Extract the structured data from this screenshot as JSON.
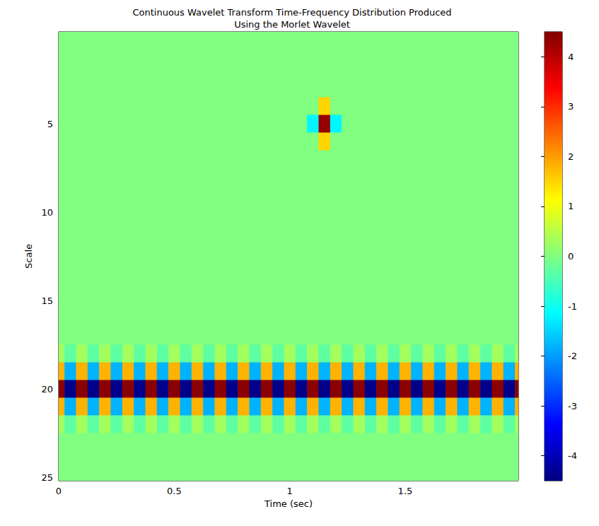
{
  "chart_data": {
    "type": "heatmap",
    "title": "Continuous Wavelet Transform Time-Frequency Distribution Produced\nUsing the Morlet Wavelet",
    "x_label": "Time (sec)",
    "y_label": "Scale",
    "xlim": [
      0,
      1.99
    ],
    "xticks": [
      0,
      0.5,
      1,
      1.5
    ],
    "ylim": [
      -0.2,
      25.2
    ],
    "yticks": [
      5,
      10,
      15,
      20,
      25
    ],
    "grid": false,
    "x": [
      0,
      0.05,
      0.1,
      0.15,
      0.2,
      0.25,
      0.3,
      0.35,
      0.4,
      0.45,
      0.5,
      0.55,
      0.6,
      0.65,
      0.7,
      0.75,
      0.8,
      0.85,
      0.9,
      0.95,
      1,
      1.05,
      1.1,
      1.15,
      1.2,
      1.25,
      1.3,
      1.35,
      1.4,
      1.45,
      1.5,
      1.55,
      1.6,
      1.65,
      1.7,
      1.75,
      1.8,
      1.85,
      1.9,
      1.95,
      2
    ],
    "y": [
      0,
      1,
      2,
      3,
      4,
      5,
      6,
      7,
      8,
      9,
      10,
      11,
      12,
      13,
      14,
      15,
      16,
      17,
      18,
      19,
      20,
      21,
      22,
      23,
      24,
      25
    ],
    "z": [
      [
        0,
        0,
        0,
        0,
        0,
        0,
        0,
        0,
        0,
        0,
        0,
        0,
        0,
        0,
        0,
        0,
        0,
        0,
        0,
        0,
        0,
        0,
        0,
        0,
        0,
        0,
        0,
        0,
        0,
        0,
        0,
        0,
        0,
        0,
        0,
        0,
        0,
        0,
        0,
        0,
        0
      ],
      [
        0,
        0,
        0,
        0,
        0,
        0,
        0,
        0,
        0,
        0,
        0,
        0,
        0,
        0,
        0,
        0,
        0,
        0,
        0,
        0,
        0,
        0,
        0,
        0,
        0,
        0,
        0,
        0,
        0,
        0,
        0,
        0,
        0,
        0,
        0,
        0,
        0,
        0,
        0,
        0,
        0
      ],
      [
        0,
        0,
        0,
        0,
        0,
        0,
        0,
        0,
        0,
        0,
        0,
        0,
        0,
        0,
        0,
        0,
        0,
        0,
        0,
        0,
        0,
        0,
        0,
        0,
        0,
        0,
        0,
        0,
        0,
        0,
        0,
        0,
        0,
        0,
        0,
        0,
        0,
        0,
        0,
        0,
        0
      ],
      [
        0,
        0,
        0,
        0,
        0,
        0,
        0,
        0,
        0,
        0,
        0,
        0,
        0,
        0,
        0,
        0,
        0,
        0,
        0,
        0,
        0,
        0,
        0,
        0,
        0,
        0,
        0,
        0,
        0,
        0,
        0,
        0,
        0,
        0,
        0,
        0,
        0,
        0,
        0,
        0,
        0
      ],
      [
        0,
        0,
        0,
        0,
        0,
        0,
        0,
        0,
        0,
        0,
        0,
        0,
        0,
        0,
        0,
        0,
        0,
        0,
        0,
        0,
        0,
        0,
        0,
        1.5,
        0,
        0,
        0,
        0,
        0,
        0,
        0,
        0,
        0,
        0,
        0,
        0,
        0,
        0,
        0,
        0,
        0
      ],
      [
        0,
        0,
        0,
        0,
        0,
        0,
        0,
        0,
        0,
        0,
        0,
        0,
        0,
        0,
        0,
        0,
        0,
        0,
        0,
        0,
        0,
        0,
        -1.2,
        4.3,
        -1.2,
        0,
        0,
        0,
        0,
        0,
        0,
        0,
        0,
        0,
        0,
        0,
        0,
        0,
        0,
        0,
        0
      ],
      [
        0,
        0,
        0,
        0,
        0,
        0,
        0,
        0,
        0,
        0,
        0,
        0,
        0,
        0,
        0,
        0,
        0,
        0,
        0,
        0,
        0,
        0,
        0,
        1.5,
        0,
        0,
        0,
        0,
        0,
        0,
        0,
        0,
        0,
        0,
        0,
        0,
        0,
        0,
        0,
        0,
        0
      ],
      [
        0,
        0,
        0,
        0,
        0,
        0,
        0,
        0,
        0,
        0,
        0,
        0,
        0,
        0,
        0,
        0,
        0,
        0,
        0,
        0,
        0,
        0,
        0,
        0,
        0,
        0,
        0,
        0,
        0,
        0,
        0,
        0,
        0,
        0,
        0,
        0,
        0,
        0,
        0,
        0,
        0
      ],
      [
        0,
        0,
        0,
        0,
        0,
        0,
        0,
        0,
        0,
        0,
        0,
        0,
        0,
        0,
        0,
        0,
        0,
        0,
        0,
        0,
        0,
        0,
        0,
        0,
        0,
        0,
        0,
        0,
        0,
        0,
        0,
        0,
        0,
        0,
        0,
        0,
        0,
        0,
        0,
        0,
        0
      ],
      [
        0,
        0,
        0,
        0,
        0,
        0,
        0,
        0,
        0,
        0,
        0,
        0,
        0,
        0,
        0,
        0,
        0,
        0,
        0,
        0,
        0,
        0,
        0,
        0,
        0,
        0,
        0,
        0,
        0,
        0,
        0,
        0,
        0,
        0,
        0,
        0,
        0,
        0,
        0,
        0,
        0
      ],
      [
        0,
        0,
        0,
        0,
        0,
        0,
        0,
        0,
        0,
        0,
        0,
        0,
        0,
        0,
        0,
        0,
        0,
        0,
        0,
        0,
        0,
        0,
        0,
        0,
        0,
        0,
        0,
        0,
        0,
        0,
        0,
        0,
        0,
        0,
        0,
        0,
        0,
        0,
        0,
        0,
        0
      ],
      [
        0,
        0,
        0,
        0,
        0,
        0,
        0,
        0,
        0,
        0,
        0,
        0,
        0,
        0,
        0,
        0,
        0,
        0,
        0,
        0,
        0,
        0,
        0,
        0,
        0,
        0,
        0,
        0,
        0,
        0,
        0,
        0,
        0,
        0,
        0,
        0,
        0,
        0,
        0,
        0,
        0
      ],
      [
        0,
        0,
        0,
        0,
        0,
        0,
        0,
        0,
        0,
        0,
        0,
        0,
        0,
        0,
        0,
        0,
        0,
        0,
        0,
        0,
        0,
        0,
        0,
        0,
        0,
        0,
        0,
        0,
        0,
        0,
        0,
        0,
        0,
        0,
        0,
        0,
        0,
        0,
        0,
        0,
        0
      ],
      [
        0,
        0,
        0,
        0,
        0,
        0,
        0,
        0,
        0,
        0,
        0,
        0,
        0,
        0,
        0,
        0,
        0,
        0,
        0,
        0,
        0,
        0,
        0,
        0,
        0,
        0,
        0,
        0,
        0,
        0,
        0,
        0,
        0,
        0,
        0,
        0,
        0,
        0,
        0,
        0,
        0
      ],
      [
        0,
        0,
        0,
        0,
        0,
        0,
        0,
        0,
        0,
        0,
        0,
        0,
        0,
        0,
        0,
        0,
        0,
        0,
        0,
        0,
        0,
        0,
        0,
        0,
        0,
        0,
        0,
        0,
        0,
        0,
        0,
        0,
        0,
        0,
        0,
        0,
        0,
        0,
        0,
        0,
        0
      ],
      [
        0,
        0,
        0,
        0,
        0,
        0,
        0,
        0,
        0,
        0,
        0,
        0,
        0,
        0,
        0,
        0,
        0,
        0,
        0,
        0,
        0,
        0,
        0,
        0,
        0,
        0,
        0,
        0,
        0,
        0,
        0,
        0,
        0,
        0,
        0,
        0,
        0,
        0,
        0,
        0,
        0
      ],
      [
        0,
        0,
        0,
        0,
        0,
        0,
        0,
        0,
        0,
        0,
        0,
        0,
        0,
        0,
        0,
        0,
        0,
        0,
        0,
        0,
        0,
        0,
        0,
        0,
        0,
        0,
        0,
        0,
        0,
        0,
        0,
        0,
        0,
        0,
        0,
        0,
        0,
        0,
        0,
        0,
        0
      ],
      [
        0,
        0,
        0,
        0,
        0,
        0,
        0,
        0,
        0,
        0,
        0,
        0,
        0,
        0,
        0,
        0,
        0,
        0,
        0,
        0,
        0,
        0,
        0,
        0,
        0,
        0,
        0,
        0,
        0,
        0,
        0,
        0,
        0,
        0,
        0,
        0,
        0,
        0,
        0,
        0,
        0
      ],
      [
        0.3,
        -0.3,
        0.3,
        -0.3,
        0.3,
        -0.3,
        0.3,
        -0.3,
        0.3,
        -0.3,
        0.3,
        -0.3,
        0.3,
        -0.3,
        0.3,
        -0.3,
        0.3,
        -0.3,
        0.3,
        -0.3,
        0.3,
        -0.3,
        0.3,
        -0.3,
        0.3,
        -0.3,
        0.3,
        -0.3,
        0.3,
        -0.3,
        0.3,
        -0.3,
        0.3,
        -0.3,
        0.3,
        -0.3,
        0.3,
        -0.3,
        0.3,
        -0.3,
        0.3
      ],
      [
        1.8,
        -1.8,
        1.8,
        -1.8,
        1.8,
        -1.8,
        1.8,
        -1.8,
        1.8,
        -1.8,
        1.8,
        -1.8,
        1.8,
        -1.8,
        1.8,
        -1.8,
        1.8,
        -1.8,
        1.8,
        -1.8,
        1.8,
        -1.8,
        1.8,
        -1.8,
        1.8,
        -1.8,
        1.8,
        -1.8,
        1.8,
        -1.8,
        1.8,
        -1.8,
        1.8,
        -1.8,
        1.8,
        -1.8,
        1.8,
        -1.8,
        1.8,
        -1.8,
        1.8
      ],
      [
        4.4,
        -4.4,
        4.4,
        -4.4,
        4.4,
        -4.4,
        4.4,
        -4.4,
        4.4,
        -4.4,
        4.4,
        -4.4,
        4.4,
        -4.4,
        4.4,
        -4.4,
        4.4,
        -4.4,
        4.4,
        -4.4,
        4.4,
        -4.4,
        4.4,
        -4.4,
        4.4,
        -4.4,
        4.4,
        -4.4,
        4.4,
        -4.4,
        4.4,
        -4.4,
        4.4,
        -4.4,
        4.4,
        -4.4,
        4.4,
        -4.4,
        4.4,
        -4.4,
        4.4
      ],
      [
        1.8,
        -1.8,
        1.8,
        -1.8,
        1.8,
        -1.8,
        1.8,
        -1.8,
        1.8,
        -1.8,
        1.8,
        -1.8,
        1.8,
        -1.8,
        1.8,
        -1.8,
        1.8,
        -1.8,
        1.8,
        -1.8,
        1.8,
        -1.8,
        1.8,
        -1.8,
        1.8,
        -1.8,
        1.8,
        -1.8,
        1.8,
        -1.8,
        1.8,
        -1.8,
        1.8,
        -1.8,
        1.8,
        -1.8,
        1.8,
        -1.8,
        1.8,
        -1.8,
        1.8
      ],
      [
        0.3,
        -0.3,
        0.3,
        -0.3,
        0.3,
        -0.3,
        0.3,
        -0.3,
        0.3,
        -0.3,
        0.3,
        -0.3,
        0.3,
        -0.3,
        0.3,
        -0.3,
        0.3,
        -0.3,
        0.3,
        -0.3,
        0.3,
        -0.3,
        0.3,
        -0.3,
        0.3,
        -0.3,
        0.3,
        -0.3,
        0.3,
        -0.3,
        0.3,
        -0.3,
        0.3,
        -0.3,
        0.3,
        -0.3,
        0.3,
        -0.3,
        0.3,
        -0.3,
        0.3
      ],
      [
        0,
        0,
        0,
        0,
        0,
        0,
        0,
        0,
        0,
        0,
        0,
        0,
        0,
        0,
        0,
        0,
        0,
        0,
        0,
        0,
        0,
        0,
        0,
        0,
        0,
        0,
        0,
        0,
        0,
        0,
        0,
        0,
        0,
        0,
        0,
        0,
        0,
        0,
        0,
        0,
        0
      ],
      [
        0,
        0,
        0,
        0,
        0,
        0,
        0,
        0,
        0,
        0,
        0,
        0,
        0,
        0,
        0,
        0,
        0,
        0,
        0,
        0,
        0,
        0,
        0,
        0,
        0,
        0,
        0,
        0,
        0,
        0,
        0,
        0,
        0,
        0,
        0,
        0,
        0,
        0,
        0,
        0,
        0
      ],
      [
        0,
        0,
        0,
        0,
        0,
        0,
        0,
        0,
        0,
        0,
        0,
        0,
        0,
        0,
        0,
        0,
        0,
        0,
        0,
        0,
        0,
        0,
        0,
        0,
        0,
        0,
        0,
        0,
        0,
        0,
        0,
        0,
        0,
        0,
        0,
        0,
        0,
        0,
        0,
        0,
        0
      ]
    ],
    "colorbar": {
      "range": [
        -4.5,
        4.5
      ],
      "ticks": [
        -4,
        -3,
        -2,
        -1,
        0,
        1,
        2,
        3,
        4
      ]
    }
  }
}
